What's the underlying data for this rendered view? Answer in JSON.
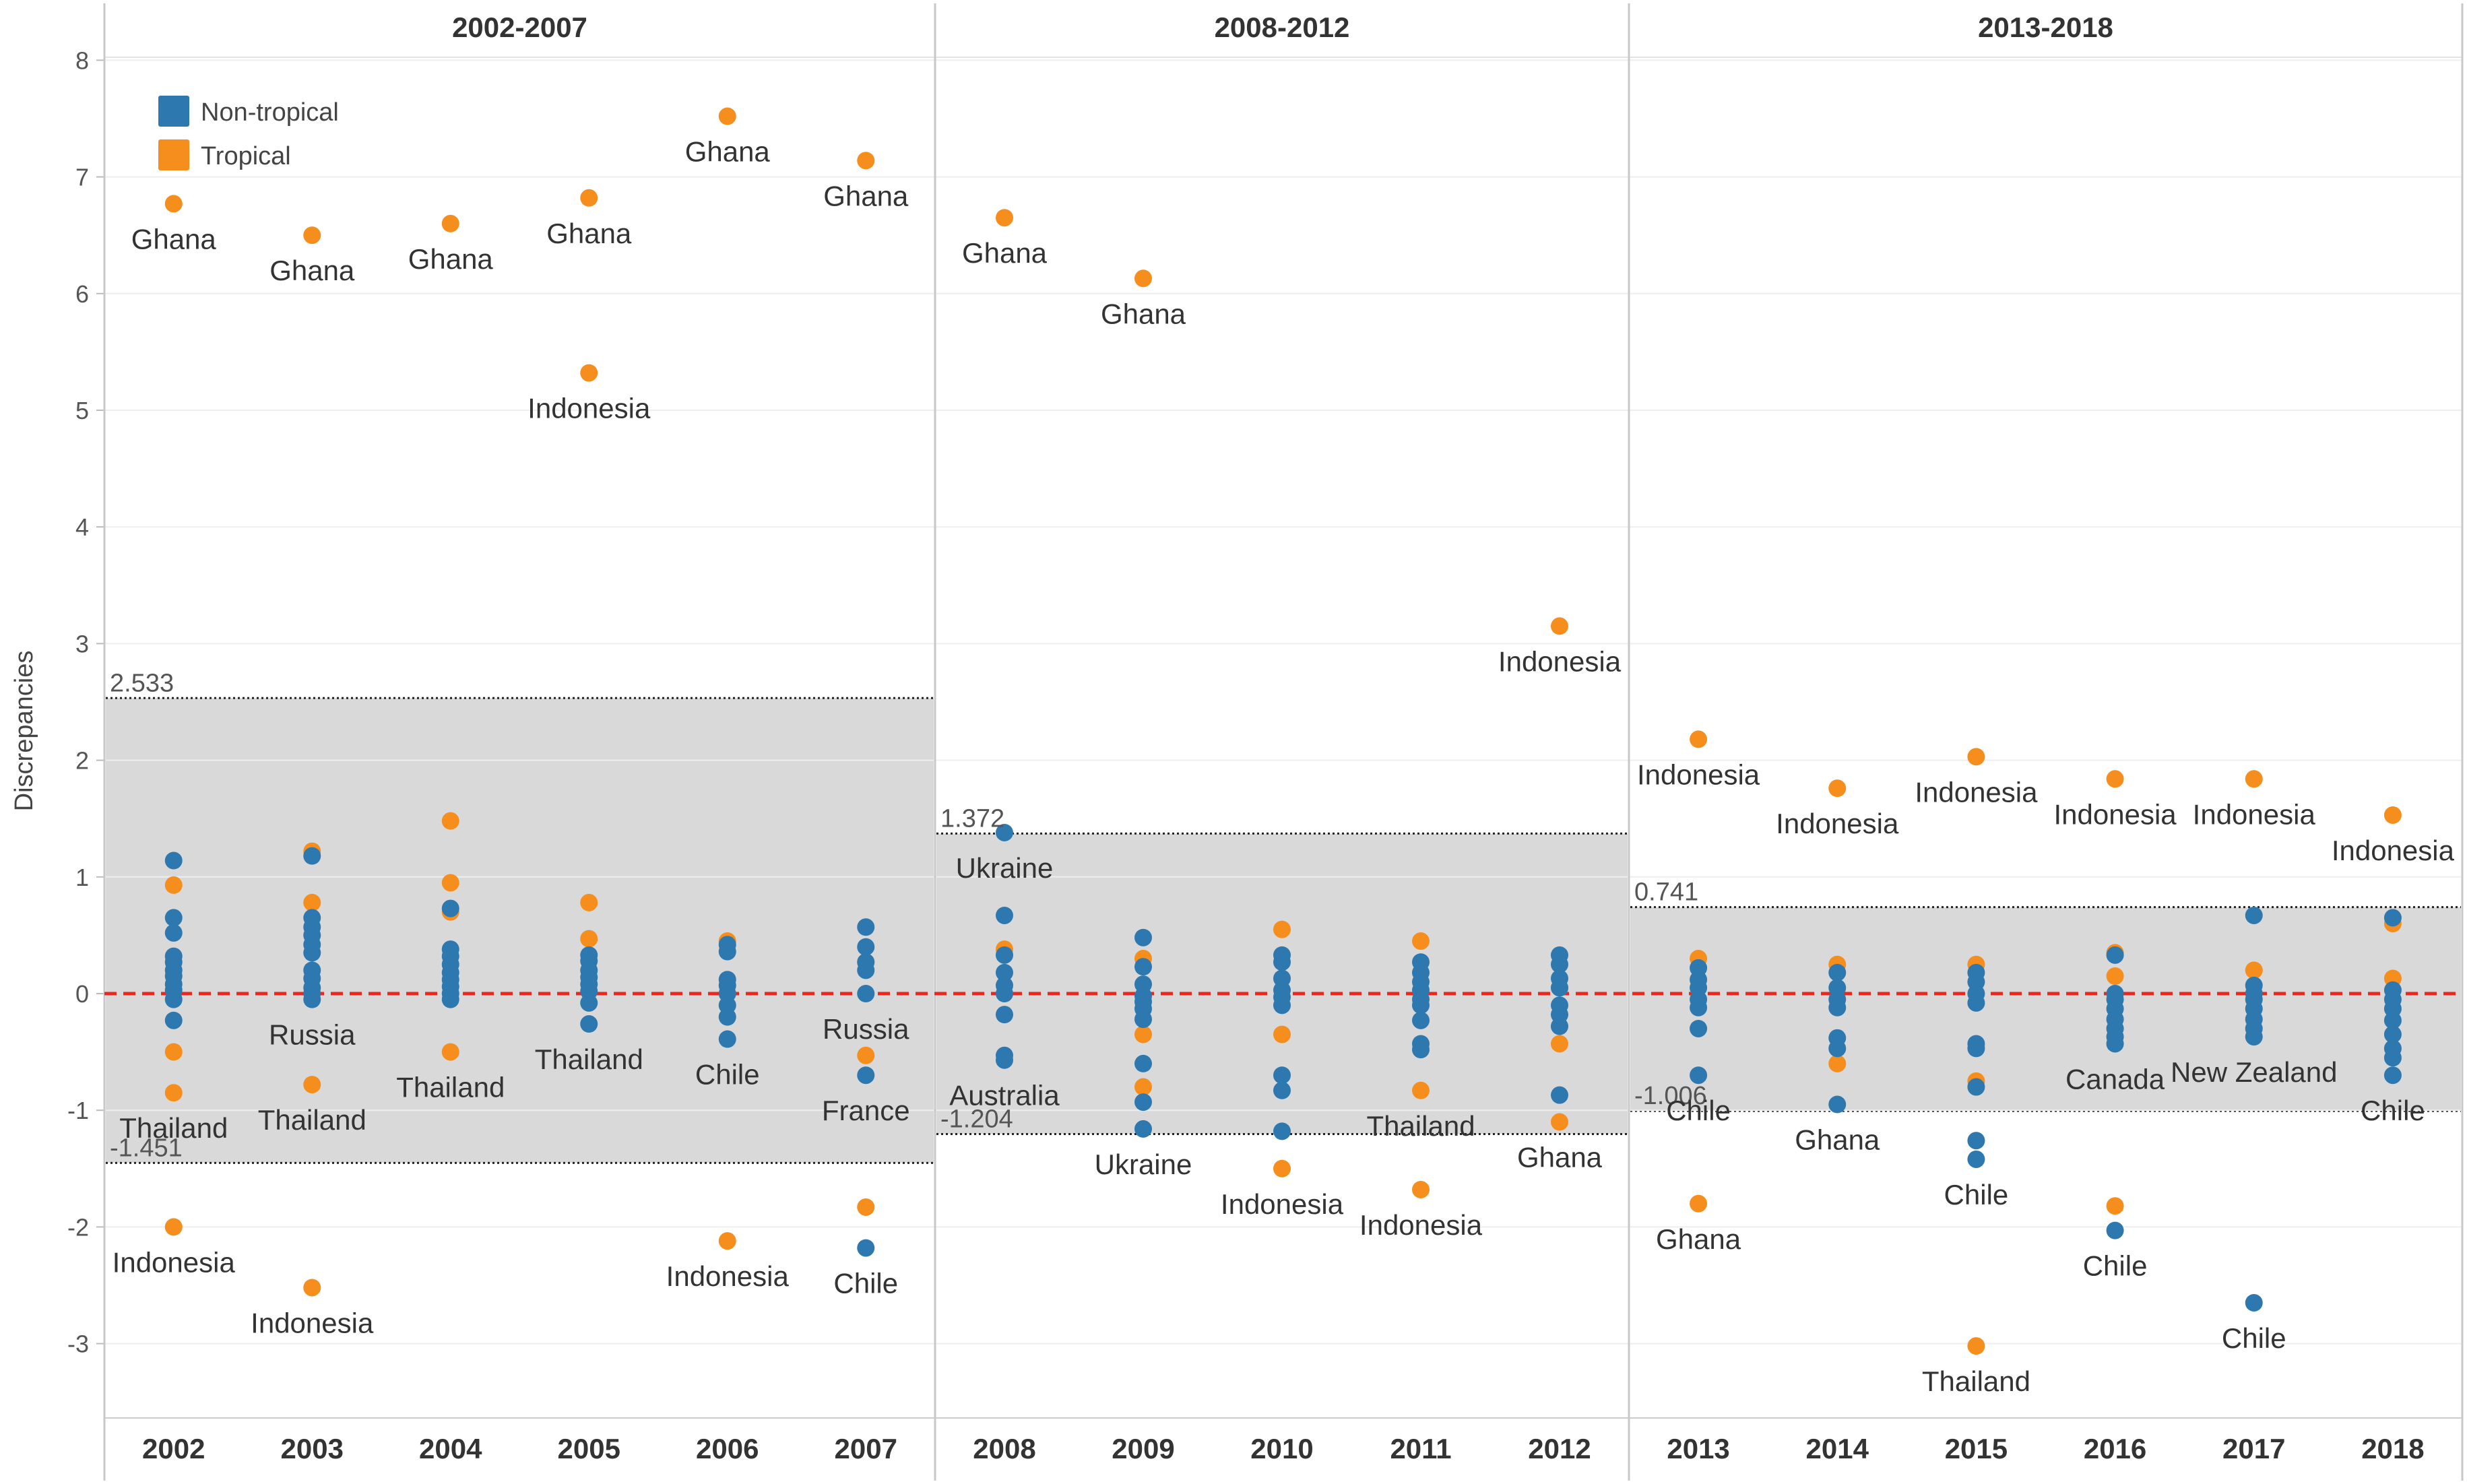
{
  "chart_data": {
    "type": "scatter",
    "ylabel": "Discrepancies",
    "ylim": [
      -3.6,
      8.2
    ],
    "yticks": [
      "8",
      "7",
      "6",
      "5",
      "4",
      "3",
      "2",
      "1",
      "0",
      "-1",
      "-2",
      "-3"
    ],
    "grid": true,
    "legend": {
      "position": "top-left",
      "entries": [
        {
          "name": "Non-tropical",
          "color": "#2e78b0"
        },
        {
          "name": "Tropical",
          "color": "#f68e1e"
        }
      ]
    },
    "colors": {
      "nontropical": "#2e78b0",
      "tropical": "#f68e1e",
      "zero_line": "#e8281e",
      "band": "#d9d9d9"
    },
    "reference_line": 0,
    "panels": [
      {
        "title": "2002-2007",
        "years": [
          "2002",
          "2003",
          "2004",
          "2005",
          "2006",
          "2007"
        ],
        "band": {
          "upper": 2.533,
          "lower": -1.451,
          "upper_label": "2.533",
          "lower_label": "-1.451"
        }
      },
      {
        "title": "2008-2012",
        "years": [
          "2008",
          "2009",
          "2010",
          "2011",
          "2012"
        ],
        "band": {
          "upper": 1.372,
          "lower": -1.204,
          "upper_label": "1.372",
          "lower_label": "-1.204"
        }
      },
      {
        "title": "2013-2018",
        "years": [
          "2013",
          "2014",
          "2015",
          "2016",
          "2017",
          "2018"
        ],
        "band": {
          "upper": 0.741,
          "lower": -1.006,
          "upper_label": "0.741",
          "lower_label": "-1.006"
        }
      }
    ],
    "series": [
      {
        "name": "Non-tropical",
        "points": [
          {
            "x": "2002",
            "y": [
              1.14,
              0.65,
              0.52,
              0.32,
              0.27,
              0.2,
              0.15,
              0.08,
              0.03,
              -0.05,
              -0.23
            ]
          },
          {
            "x": "2003",
            "y": [
              1.18,
              0.65,
              0.57,
              0.5,
              0.42,
              0.35,
              0.2,
              0.13,
              0.05,
              0.0,
              -0.05
            ]
          },
          {
            "x": "2004",
            "y": [
              0.73,
              0.38,
              0.32,
              0.25,
              0.18,
              0.12,
              0.06,
              0.0,
              -0.05
            ]
          },
          {
            "x": "2005",
            "y": [
              0.33,
              0.28,
              0.2,
              0.14,
              0.08,
              0.02,
              -0.08,
              -0.26
            ]
          },
          {
            "x": "2006",
            "y": [
              0.42,
              0.36,
              0.12,
              0.07,
              0.0,
              -0.1,
              -0.2,
              -0.39
            ]
          },
          {
            "x": "2007",
            "y": [
              0.57,
              0.4,
              0.27,
              0.2,
              0.0,
              -0.7,
              -2.18
            ]
          },
          {
            "x": "2008",
            "y": [
              1.38,
              0.67,
              0.33,
              0.18,
              0.07,
              0.0,
              -0.18,
              -0.53,
              -0.57
            ]
          },
          {
            "x": "2009",
            "y": [
              0.48,
              0.23,
              0.08,
              -0.02,
              -0.07,
              -0.13,
              -0.22,
              -0.6,
              -0.93,
              -1.16
            ]
          },
          {
            "x": "2010",
            "y": [
              0.33,
              0.27,
              0.13,
              0.03,
              -0.03,
              -0.1,
              -0.7,
              -0.83,
              -1.18
            ]
          },
          {
            "x": "2011",
            "y": [
              0.27,
              0.18,
              0.1,
              0.03,
              -0.05,
              -0.1,
              -0.23,
              -0.43,
              -0.48
            ]
          },
          {
            "x": "2012",
            "y": [
              0.33,
              0.25,
              0.13,
              0.05,
              -0.1,
              -0.18,
              -0.28,
              -0.87
            ]
          },
          {
            "x": "2013",
            "y": [
              0.22,
              0.12,
              0.05,
              -0.05,
              -0.12,
              -0.3,
              -0.7
            ]
          },
          {
            "x": "2014",
            "y": [
              0.18,
              0.05,
              -0.05,
              -0.12,
              -0.38,
              -0.47,
              -0.95
            ]
          },
          {
            "x": "2015",
            "y": [
              0.18,
              0.1,
              0.0,
              -0.08,
              -0.43,
              -0.47,
              -0.8,
              -1.26,
              -1.42
            ]
          },
          {
            "x": "2016",
            "y": [
              0.33,
              0.0,
              -0.05,
              -0.13,
              -0.22,
              -0.3,
              -0.37,
              -0.43,
              -2.03
            ]
          },
          {
            "x": "2017",
            "y": [
              0.67,
              0.07,
              0.0,
              -0.05,
              -0.13,
              -0.22,
              -0.3,
              -0.37,
              -2.65
            ]
          },
          {
            "x": "2018",
            "y": [
              0.65,
              0.03,
              -0.05,
              -0.13,
              -0.23,
              -0.35,
              -0.47,
              -0.55,
              -0.7
            ]
          }
        ]
      },
      {
        "name": "Tropical",
        "points": [
          {
            "x": "2002",
            "y": [
              6.77,
              0.93,
              -0.5,
              -0.85,
              -2.0
            ]
          },
          {
            "x": "2003",
            "y": [
              6.5,
              1.22,
              0.78,
              -0.78,
              -2.52
            ]
          },
          {
            "x": "2004",
            "y": [
              6.6,
              1.48,
              0.95,
              0.7,
              -0.5
            ]
          },
          {
            "x": "2005",
            "y": [
              6.82,
              5.32,
              0.78,
              0.47
            ]
          },
          {
            "x": "2006",
            "y": [
              7.52,
              0.45,
              -2.12
            ]
          },
          {
            "x": "2007",
            "y": [
              7.14,
              0.27,
              -0.53,
              -1.83
            ]
          },
          {
            "x": "2008",
            "y": [
              6.65,
              0.38
            ]
          },
          {
            "x": "2009",
            "y": [
              6.13,
              0.3,
              -0.35,
              -0.8
            ]
          },
          {
            "x": "2010",
            "y": [
              0.55,
              -0.35,
              -1.5
            ]
          },
          {
            "x": "2011",
            "y": [
              0.45,
              -0.83,
              -1.68
            ]
          },
          {
            "x": "2012",
            "y": [
              3.15,
              0.05,
              -0.43,
              -1.1
            ]
          },
          {
            "x": "2013",
            "y": [
              2.18,
              0.3,
              -1.8
            ]
          },
          {
            "x": "2014",
            "y": [
              1.76,
              0.25,
              -0.6
            ]
          },
          {
            "x": "2015",
            "y": [
              2.03,
              0.25,
              -0.75,
              -3.02
            ]
          },
          {
            "x": "2016",
            "y": [
              1.84,
              0.35,
              0.15,
              -1.82
            ]
          },
          {
            "x": "2017",
            "y": [
              1.84,
              0.2
            ]
          },
          {
            "x": "2018",
            "y": [
              1.53,
              0.6,
              0.13
            ]
          }
        ]
      }
    ],
    "annotations": [
      {
        "x": "2002",
        "y": 6.77,
        "text": "Ghana",
        "pos": "below"
      },
      {
        "x": "2002",
        "y": -0.85,
        "text": "Thailand",
        "pos": "below"
      },
      {
        "x": "2002",
        "y": -2.0,
        "text": "Indonesia",
        "pos": "below"
      },
      {
        "x": "2003",
        "y": 6.5,
        "text": "Ghana",
        "pos": "below"
      },
      {
        "x": "2003",
        "y": -0.05,
        "text": "Russia",
        "pos": "below"
      },
      {
        "x": "2003",
        "y": -0.78,
        "text": "Thailand",
        "pos": "below"
      },
      {
        "x": "2003",
        "y": -2.52,
        "text": "Indonesia",
        "pos": "below"
      },
      {
        "x": "2004",
        "y": 6.6,
        "text": "Ghana",
        "pos": "below"
      },
      {
        "x": "2004",
        "y": -0.5,
        "text": "Thailand",
        "pos": "below"
      },
      {
        "x": "2005",
        "y": 6.82,
        "text": "Ghana",
        "pos": "below"
      },
      {
        "x": "2005",
        "y": 5.32,
        "text": "Indonesia",
        "pos": "below"
      },
      {
        "x": "2005",
        "y": -0.26,
        "text": "Thailand",
        "pos": "below"
      },
      {
        "x": "2006",
        "y": 7.52,
        "text": "Ghana",
        "pos": "below"
      },
      {
        "x": "2006",
        "y": -0.39,
        "text": "Chile",
        "pos": "below"
      },
      {
        "x": "2006",
        "y": -2.12,
        "text": "Indonesia",
        "pos": "below"
      },
      {
        "x": "2007",
        "y": 7.14,
        "text": "Ghana",
        "pos": "below"
      },
      {
        "x": "2007",
        "y": 0.0,
        "text": "Russia",
        "pos": "below"
      },
      {
        "x": "2007",
        "y": -0.7,
        "text": "France",
        "pos": "below"
      },
      {
        "x": "2007",
        "y": -2.18,
        "text": "Chile",
        "pos": "below"
      },
      {
        "x": "2008",
        "y": 6.65,
        "text": "Ghana",
        "pos": "below"
      },
      {
        "x": "2008",
        "y": 1.38,
        "text": "Ukraine",
        "pos": "below"
      },
      {
        "x": "2008",
        "y": -0.57,
        "text": "Australia",
        "pos": "below"
      },
      {
        "x": "2009",
        "y": 6.13,
        "text": "Ghana",
        "pos": "below"
      },
      {
        "x": "2009",
        "y": -1.16,
        "text": "Ukraine",
        "pos": "below"
      },
      {
        "x": "2010",
        "y": -1.5,
        "text": "Indonesia",
        "pos": "below"
      },
      {
        "x": "2011",
        "y": -0.83,
        "text": "Thailand",
        "pos": "below"
      },
      {
        "x": "2011",
        "y": -1.68,
        "text": "Indonesia",
        "pos": "below"
      },
      {
        "x": "2012",
        "y": 3.15,
        "text": "Indonesia",
        "pos": "below"
      },
      {
        "x": "2012",
        "y": -1.1,
        "text": "Ghana",
        "pos": "below"
      },
      {
        "x": "2013",
        "y": 2.18,
        "text": "Indonesia",
        "pos": "below"
      },
      {
        "x": "2013",
        "y": -0.7,
        "text": "Chile",
        "pos": "below"
      },
      {
        "x": "2013",
        "y": -1.8,
        "text": "Ghana",
        "pos": "below"
      },
      {
        "x": "2014",
        "y": 1.76,
        "text": "Indonesia",
        "pos": "below"
      },
      {
        "x": "2014",
        "y": -0.95,
        "text": "Ghana",
        "pos": "below"
      },
      {
        "x": "2015",
        "y": 2.03,
        "text": "Indonesia",
        "pos": "below"
      },
      {
        "x": "2015",
        "y": -1.42,
        "text": "Chile",
        "pos": "below"
      },
      {
        "x": "2015",
        "y": -3.02,
        "text": "Thailand",
        "pos": "below"
      },
      {
        "x": "2016",
        "y": 1.84,
        "text": "Indonesia",
        "pos": "below"
      },
      {
        "x": "2016",
        "y": -0.43,
        "text": "Canada",
        "pos": "below"
      },
      {
        "x": "2016",
        "y": -2.03,
        "text": "Chile",
        "pos": "below"
      },
      {
        "x": "2017",
        "y": 1.84,
        "text": "Indonesia",
        "pos": "below"
      },
      {
        "x": "2017",
        "y": -0.37,
        "text": "New Zealand",
        "pos": "below"
      },
      {
        "x": "2017",
        "y": -2.65,
        "text": "Chile",
        "pos": "below"
      },
      {
        "x": "2018",
        "y": 1.53,
        "text": "Indonesia",
        "pos": "below"
      },
      {
        "x": "2018",
        "y": -0.7,
        "text": "Chile",
        "pos": "below"
      }
    ]
  }
}
